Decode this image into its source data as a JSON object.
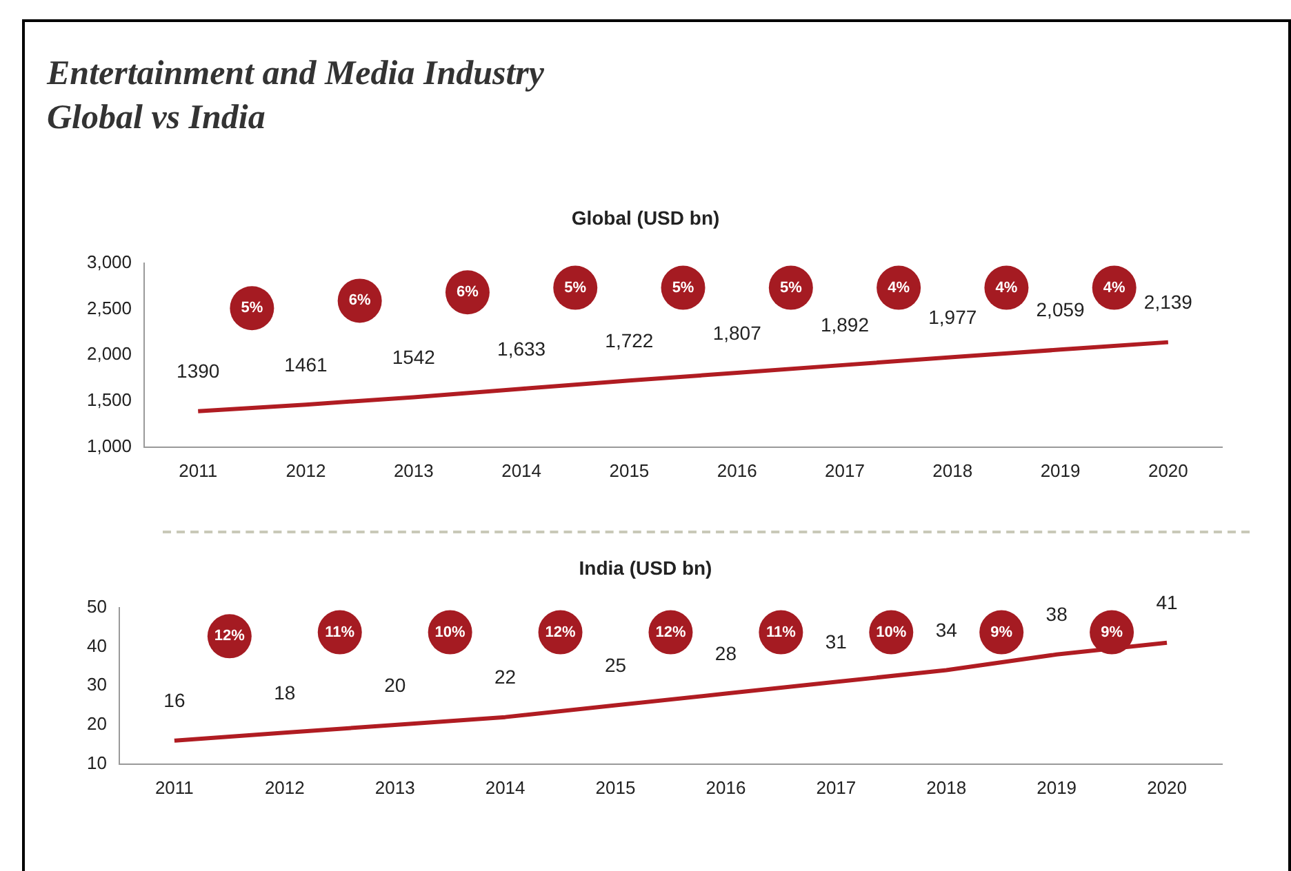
{
  "chart_data": [
    {
      "type": "line",
      "title": "Entertainment and Media Industry\nGlobal vs India",
      "subtitle": "Global (USD bn)",
      "categories": [
        "2011",
        "2012",
        "2013",
        "2014",
        "2015",
        "2016",
        "2017",
        "2018",
        "2019",
        "2020"
      ],
      "series": [
        {
          "color": "#b01c22",
          "values": [
            1390,
            1461,
            1542,
            1633,
            1722,
            1807,
            1892,
            1977,
            2059,
            2139
          ],
          "value_labels": [
            "1390",
            "1461",
            "1542",
            "1,633",
            "1,722",
            "1,807",
            "1,892",
            "1,977",
            "2,059",
            "2,139"
          ]
        }
      ],
      "ylim": [
        1000,
        3000
      ],
      "yticks": [
        {
          "value": 1000,
          "label": "1,000"
        },
        {
          "value": 1500,
          "label": "1,500"
        },
        {
          "value": 2000,
          "label": "2,000"
        },
        {
          "value": 2500,
          "label": "2,500"
        },
        {
          "value": 3000,
          "label": "3,000"
        }
      ],
      "annotations": [
        "5%",
        "6%",
        "6%",
        "5%",
        "5%",
        "5%",
        "4%",
        "4%",
        "4%"
      ],
      "grid": false,
      "legend": false,
      "marker": "none"
    },
    {
      "type": "line",
      "subtitle": "India (USD bn)",
      "categories": [
        "2011",
        "2012",
        "2013",
        "2014",
        "2015",
        "2016",
        "2017",
        "2018",
        "2019",
        "2020"
      ],
      "series": [
        {
          "color": "#b01c22",
          "values": [
            16,
            18,
            20,
            22,
            25,
            28,
            31,
            34,
            38,
            41
          ],
          "value_labels": [
            "16",
            "18",
            "20",
            "22",
            "25",
            "28",
            "31",
            "34",
            "38",
            "41"
          ]
        }
      ],
      "ylim": [
        10,
        50
      ],
      "yticks": [
        10,
        20,
        30,
        40,
        50
      ],
      "annotations": [
        "12%",
        "11%",
        "10%",
        "12%",
        "12%",
        "11%",
        "10%",
        "9%",
        "9%"
      ],
      "grid": false,
      "legend": false,
      "marker": "none"
    }
  ]
}
